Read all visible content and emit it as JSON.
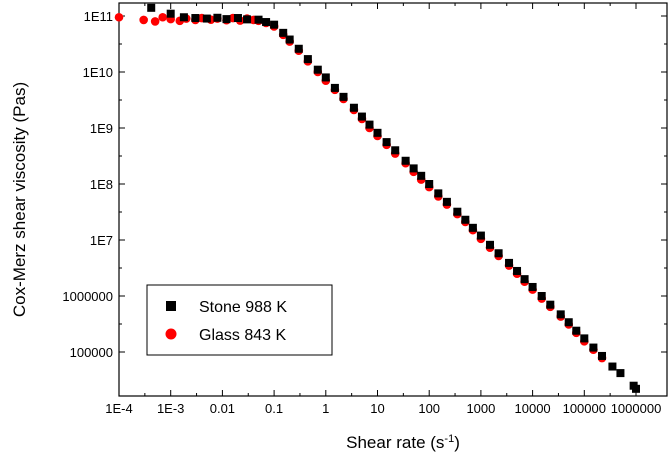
{
  "chart_data": {
    "type": "scatter",
    "xscale": "log",
    "yscale": "log",
    "xlim": [
      0.0001,
      1000000
    ],
    "ylim": [
      20000,
      150000000000
    ],
    "xlabel": "Shear rate (s",
    "xlabel_sup": "-1",
    "xlabel_end": ")",
    "ylabel": "Cox-Merz shear viscosity (Pas)",
    "xticks": [
      {
        "value": 0.0001,
        "label": "1E-4"
      },
      {
        "value": 0.001,
        "label": "1E-3"
      },
      {
        "value": 0.01,
        "label": "0.01"
      },
      {
        "value": 0.1,
        "label": "0.1"
      },
      {
        "value": 1,
        "label": "1"
      },
      {
        "value": 10,
        "label": "10"
      },
      {
        "value": 100,
        "label": "100"
      },
      {
        "value": 1000,
        "label": "1000"
      },
      {
        "value": 10000,
        "label": "10000"
      },
      {
        "value": 100000,
        "label": "100000"
      },
      {
        "value": 1000000,
        "label": "1000000"
      }
    ],
    "yticks": [
      {
        "value": 100000,
        "label": "100000"
      },
      {
        "value": 1000000,
        "label": "1000000"
      },
      {
        "value": 10000000,
        "label": "1E7"
      },
      {
        "value": 100000000,
        "label": "1E8"
      },
      {
        "value": 1000000000,
        "label": "1E9"
      },
      {
        "value": 10000000000,
        "label": "1E10"
      },
      {
        "value": 100000000000,
        "label": "1E11"
      }
    ],
    "legend_position": "bottom-left",
    "series": [
      {
        "name": "Stone 988 K",
        "marker": "square",
        "color": "#000000",
        "x": [
          0.00042,
          0.001,
          0.0018,
          0.003,
          0.005,
          0.008,
          0.012,
          0.02,
          0.03,
          0.05,
          0.07,
          0.1,
          0.15,
          0.2,
          0.3,
          0.45,
          0.7,
          1,
          1.5,
          2.2,
          3.5,
          5,
          7,
          10,
          15,
          22,
          35,
          50,
          70,
          100,
          150,
          220,
          350,
          500,
          700,
          1000,
          1500,
          2200,
          3500,
          5000,
          7000,
          10000,
          15000,
          22000,
          35000,
          50000,
          70000,
          100000,
          150000,
          220000,
          350000,
          500000,
          900000,
          1000000
        ],
        "y": [
          140000000000,
          110000000000,
          95000000000,
          92000000000,
          90000000000,
          93000000000,
          88000000000,
          92000000000,
          87000000000,
          86000000000,
          78000000000,
          70000000000,
          50000000000,
          38000000000,
          26000000000,
          17000000000,
          11000000000,
          8000000000,
          5200000000,
          3600000000,
          2300000000,
          1600000000,
          1150000000,
          820000000,
          560000000,
          400000000,
          260000000,
          190000000,
          140000000,
          100000000,
          68000000,
          48000000,
          32000000,
          23000000,
          16500000,
          12000000,
          8200000,
          5800000,
          3900000,
          2800000,
          2000000,
          1450000,
          1000000,
          700000,
          470000,
          340000,
          240000,
          175000,
          120000,
          85000,
          55000,
          42000,
          25000,
          22000
        ]
      },
      {
        "name": "Glass 843 K",
        "marker": "circle",
        "color": "#ff0000",
        "x": [
          0.0001,
          0.0003,
          0.0005,
          0.0007,
          0.001,
          0.0015,
          0.002,
          0.003,
          0.004,
          0.006,
          0.008,
          0.012,
          0.016,
          0.022,
          0.03,
          0.04,
          0.05,
          0.07,
          0.1,
          0.15,
          0.2,
          0.3,
          0.45,
          0.7,
          1,
          1.5,
          2.2,
          3.5,
          5,
          7,
          10,
          15,
          22,
          35,
          50,
          70,
          100,
          150,
          220,
          350,
          500,
          700,
          1000,
          1500,
          2200,
          3500,
          5000,
          7000,
          10000,
          15000,
          22000,
          35000,
          50000,
          70000,
          100000,
          150000,
          220000
        ],
        "y": [
          95000000000,
          85000000000,
          80000000000,
          95000000000,
          88000000000,
          82000000000,
          90000000000,
          85000000000,
          92000000000,
          86000000000,
          90000000000,
          84000000000,
          92000000000,
          83000000000,
          90000000000,
          85000000000,
          82000000000,
          75000000000,
          65000000000,
          46000000000,
          35000000000,
          24000000000,
          15500000000,
          10000000000,
          7000000000,
          4800000000,
          3300000000,
          2100000000,
          1450000000,
          1000000000,
          720000000,
          500000000,
          350000000,
          235000000,
          165000000,
          120000000,
          88000000,
          60000000,
          43000000,
          29000000,
          21000000,
          15000000,
          10500000,
          7300000,
          5200000,
          3500000,
          2500000,
          1800000,
          1300000,
          900000,
          640000,
          430000,
          310000,
          220000,
          155000,
          110000,
          78000
        ]
      }
    ]
  }
}
